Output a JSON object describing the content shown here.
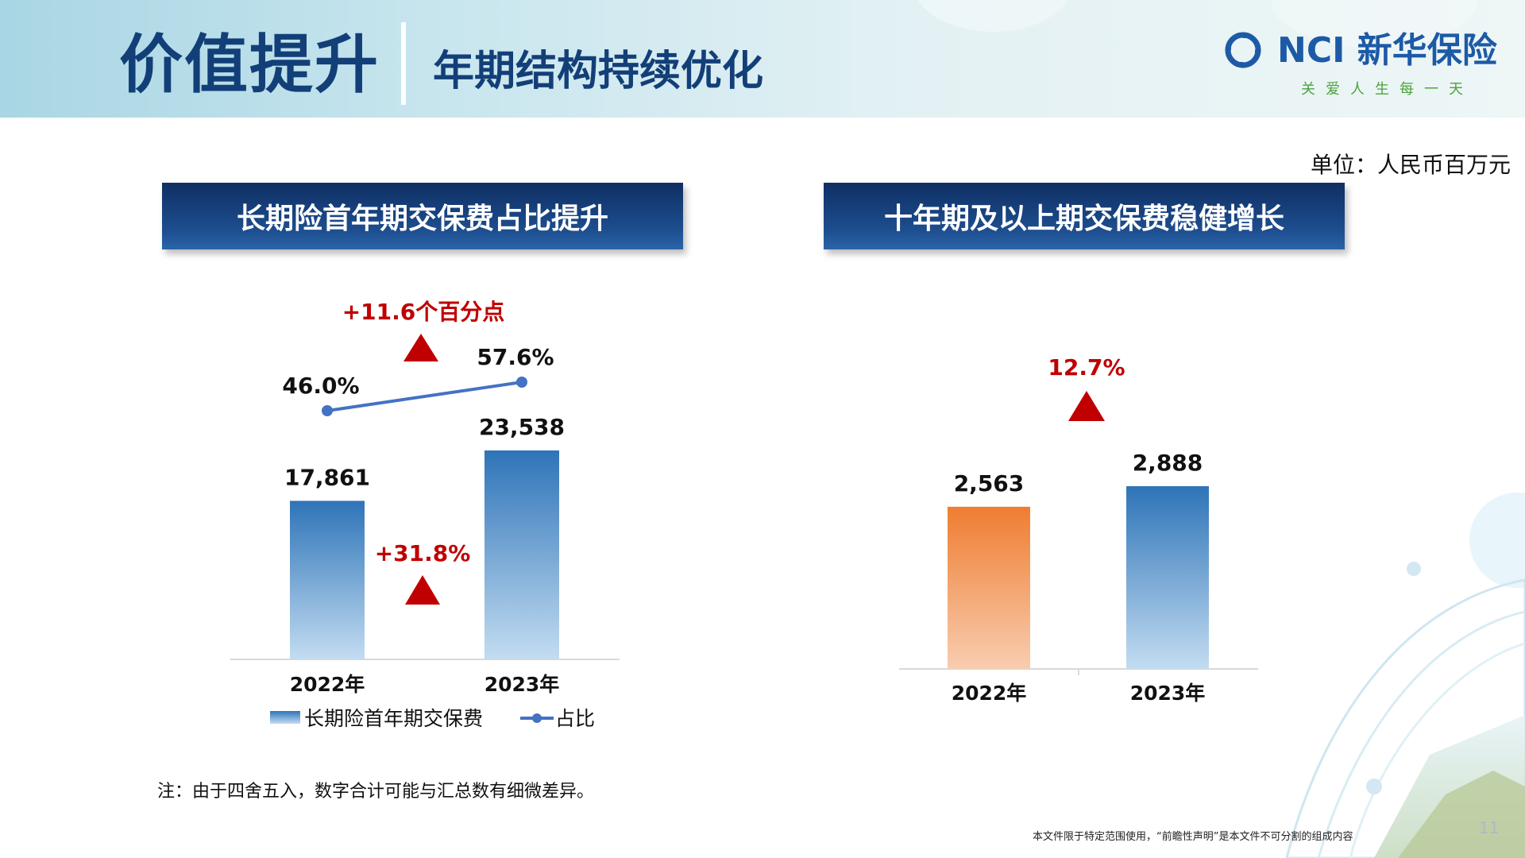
{
  "header": {
    "title": "价值提升",
    "subtitle": "年期结构持续优化",
    "logo_text": "NCI 新华保险",
    "logo_slogan": "关爱人生每一天"
  },
  "unit": "单位：人民币百万元",
  "left_panel": {
    "banner": "长期险首年期交保费占比提升",
    "bar_growth_label": "+31.8%",
    "ratio_growth_label": "+11.6个百分点",
    "legend_bar": "长期险首年期交保费",
    "legend_line": "占比"
  },
  "right_panel": {
    "banner": "十年期及以上期交保费稳健增长",
    "growth_label": "12.7%"
  },
  "colors": {
    "header_navy": "#133f78",
    "blue_bar": "#2e74b8",
    "orange_bar": "#ef7d31",
    "line": "#4472c4",
    "increase_red": "#c00000"
  },
  "chart_data": [
    {
      "type": "bar",
      "categories": [
        "2022年",
        "2023年"
      ],
      "series": [
        {
          "name": "长期险首年期交保费",
          "values": [
            17861,
            23538
          ],
          "labels": [
            "17,861",
            "23,538"
          ]
        },
        {
          "name": "占比",
          "type": "line",
          "values": [
            46.0,
            57.6
          ],
          "labels": [
            "46.0%",
            "57.6%"
          ]
        }
      ]
    },
    {
      "type": "bar",
      "categories": [
        "2022年",
        "2023年"
      ],
      "series": [
        {
          "values": [
            2563,
            2888
          ],
          "labels": [
            "2,563",
            "2,888"
          ]
        }
      ]
    }
  ],
  "note": "注：由于四舍五入，数字合计可能与汇总数有细微差异。",
  "disclaimer": "本文件限于特定范围使用，“前瞻性声明”是本文件不可分割的组成内容",
  "page_number": "11"
}
